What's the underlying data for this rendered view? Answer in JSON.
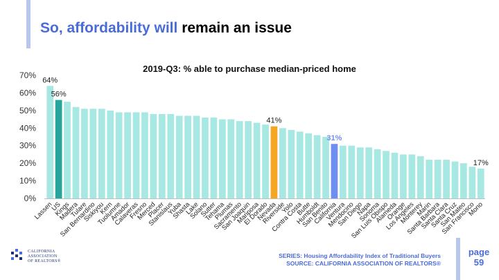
{
  "slide": {
    "title_part1": "So, affordability will ",
    "title_part2": "remain an issue",
    "series_note": "SERIES: Housing Affordability Index of Traditional Buyers",
    "source_note": "SOURCE: CALIFORNIA ASSOCIATION OF REALTORS®",
    "page_label": "page",
    "page_number": "59",
    "logo_line1": "CALIFORNIA",
    "logo_line2": "ASSOCIATION",
    "logo_line3": "OF REALTORS®"
  },
  "colors": {
    "accent": "#4a6cd6",
    "bar_default": "#a8e8e2",
    "bar_us": "#26a69a",
    "bar_california": "#6f8ff0",
    "bar_highlight": "#f5a623"
  },
  "chart_data": {
    "type": "bar",
    "title": "2019-Q3: % able to purchase median-priced home",
    "xlabel": "",
    "ylabel": "",
    "ylim": [
      0,
      70
    ],
    "yticks": [
      "0%",
      "10%",
      "20%",
      "30%",
      "40%",
      "50%",
      "60%",
      "70%"
    ],
    "grid": false,
    "categories": [
      "Lassen",
      "US",
      "Kings",
      "Madera",
      "Tulare",
      "San Bernardino",
      "Siskiyou",
      "Kern",
      "Tuolumne",
      "Amador",
      "Calaveras",
      "Fresno",
      "Merced",
      "Placer",
      "Stanislaus",
      "Yuba",
      "Shasta",
      "Lake",
      "Solano",
      "Sutter",
      "Tehama",
      "Plumas",
      "Sacramento",
      "San Joaquin",
      "Mariposa",
      "El Dorado",
      "Nevada",
      "Riverside",
      "Yolo",
      "Contra Costa",
      "Butte",
      "Humboldt",
      "San Benito",
      "California",
      "Ventura",
      "Mendocino",
      "San Diego",
      "Napa",
      "Sonoma",
      "San Luis Obispo",
      "Alameda",
      "Orange",
      "Los Angeles",
      "Monterey",
      "Marin",
      "Santa Barbara",
      "Santa Clara",
      "Santa Cruz",
      "San Mateo",
      "San Francisco",
      "Mono"
    ],
    "values": [
      64,
      56,
      55,
      52,
      51,
      51,
      51,
      50,
      49,
      49,
      49,
      49,
      48,
      48,
      48,
      47,
      47,
      47,
      46,
      46,
      45,
      45,
      44,
      44,
      43,
      42,
      41,
      40,
      39,
      38,
      37,
      36,
      35,
      31,
      30,
      30,
      29,
      29,
      28,
      27,
      26,
      25,
      25,
      24,
      22,
      22,
      22,
      21,
      20,
      18,
      17
    ],
    "data_labels": [
      {
        "category": "Lassen",
        "label": "64%"
      },
      {
        "category": "US",
        "label": "56%"
      },
      {
        "category": "Nevada",
        "label": "41%"
      },
      {
        "category": "California",
        "label": "31%"
      },
      {
        "category": "Mono",
        "label": "17%"
      }
    ],
    "highlights": {
      "US": "bar_us",
      "Nevada": "bar_highlight",
      "California": "bar_california"
    }
  }
}
